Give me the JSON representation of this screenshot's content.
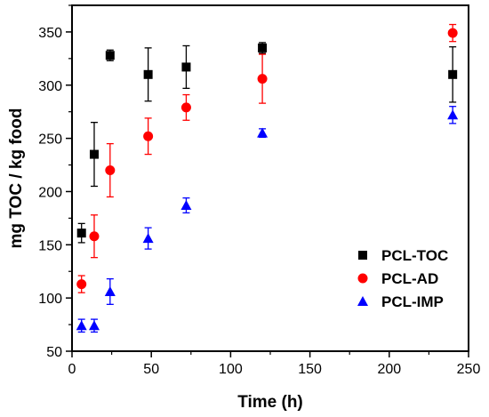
{
  "chart_data": {
    "type": "scatter",
    "xlabel": "Time (h)",
    "ylabel": "mg TOC / kg food",
    "xlim": [
      0,
      250
    ],
    "ylim": [
      50,
      375
    ],
    "xticks": [
      0,
      50,
      100,
      150,
      200,
      250
    ],
    "yticks": [
      50,
      100,
      150,
      200,
      250,
      300,
      350
    ],
    "grid": false,
    "legend_position": "bottom-right",
    "series": [
      {
        "name": "PCL-TOC",
        "marker": "square",
        "color": "#000000",
        "points": [
          {
            "x": 6,
            "y": 161,
            "err": 9
          },
          {
            "x": 14,
            "y": 235,
            "err": 30
          },
          {
            "x": 24,
            "y": 328,
            "err": 5
          },
          {
            "x": 48,
            "y": 310,
            "err": 25
          },
          {
            "x": 72,
            "y": 317,
            "err": 20
          },
          {
            "x": 120,
            "y": 335,
            "err": 5
          },
          {
            "x": 240,
            "y": 310,
            "err": 26
          }
        ]
      },
      {
        "name": "PCL-AD",
        "marker": "circle",
        "color": "#ff0000",
        "points": [
          {
            "x": 6,
            "y": 113,
            "err": 8
          },
          {
            "x": 14,
            "y": 158,
            "err": 20
          },
          {
            "x": 24,
            "y": 220,
            "err": 25
          },
          {
            "x": 48,
            "y": 252,
            "err": 17
          },
          {
            "x": 72,
            "y": 279,
            "err": 12
          },
          {
            "x": 120,
            "y": 306,
            "err": 23
          },
          {
            "x": 240,
            "y": 349,
            "err": 8
          }
        ]
      },
      {
        "name": "PCL-IMP",
        "marker": "triangle",
        "color": "#0000ff",
        "points": [
          {
            "x": 6,
            "y": 74,
            "err": 6
          },
          {
            "x": 14,
            "y": 74,
            "err": 6
          },
          {
            "x": 24,
            "y": 106,
            "err": 12
          },
          {
            "x": 48,
            "y": 156,
            "err": 10
          },
          {
            "x": 72,
            "y": 187,
            "err": 7
          },
          {
            "x": 120,
            "y": 255,
            "err": 4
          },
          {
            "x": 240,
            "y": 272,
            "err": 8
          }
        ]
      }
    ]
  }
}
